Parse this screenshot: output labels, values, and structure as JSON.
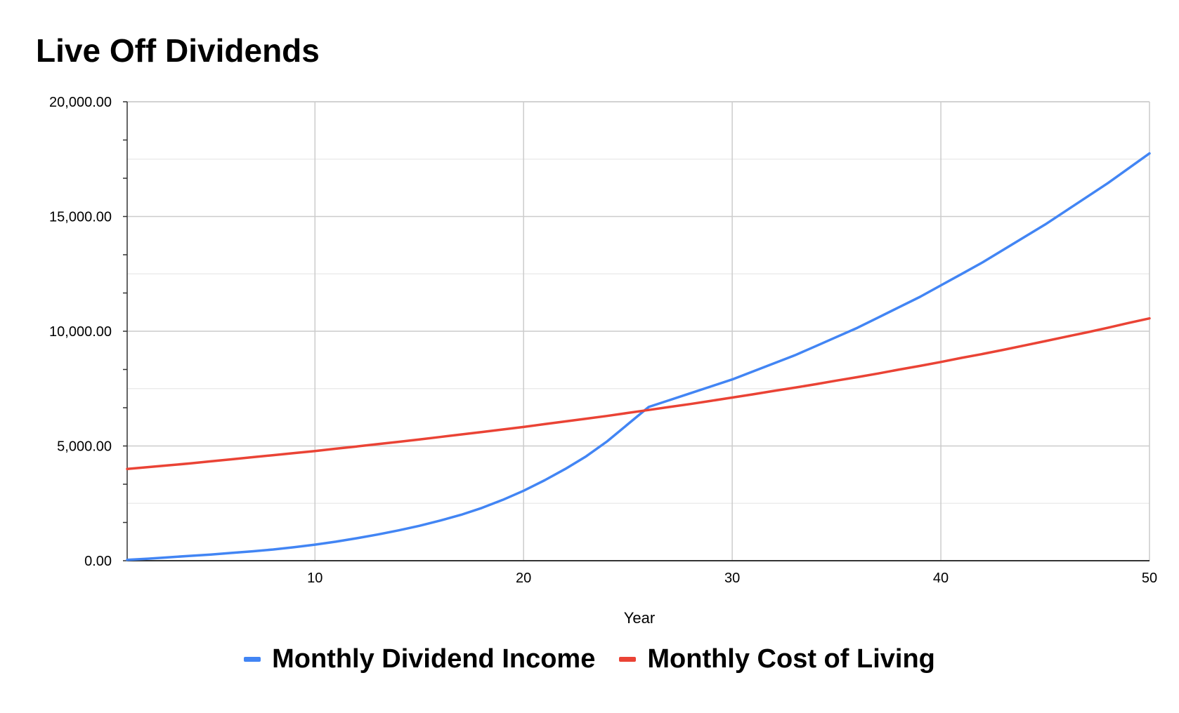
{
  "chart_data": {
    "type": "line",
    "title": "Live Off Dividends",
    "xlabel": "Year",
    "ylabel": "",
    "xlim": [
      1,
      50
    ],
    "ylim": [
      0,
      20000
    ],
    "x_ticks": [
      {
        "value": 10,
        "label": "10"
      },
      {
        "value": 20,
        "label": "20"
      },
      {
        "value": 30,
        "label": "30"
      },
      {
        "value": 40,
        "label": "40"
      },
      {
        "value": 50,
        "label": "50"
      }
    ],
    "y_ticks": [
      {
        "value": 0,
        "label": "0.00"
      },
      {
        "value": 5000,
        "label": "5,000.00"
      },
      {
        "value": 10000,
        "label": "10,000.00"
      },
      {
        "value": 15000,
        "label": "15,000.00"
      },
      {
        "value": 20000,
        "label": "20,000.00"
      }
    ],
    "grid": true,
    "legend_position": "bottom",
    "x": [
      1,
      2,
      3,
      4,
      5,
      6,
      7,
      8,
      9,
      10,
      11,
      12,
      13,
      14,
      15,
      16,
      17,
      18,
      19,
      20,
      21,
      22,
      23,
      24,
      25,
      26,
      27,
      28,
      29,
      30,
      31,
      32,
      33,
      34,
      35,
      36,
      37,
      38,
      39,
      40,
      41,
      42,
      43,
      44,
      45,
      46,
      47,
      48,
      49,
      50
    ],
    "series": [
      {
        "name": "Monthly Dividend Income",
        "color": "#4285f4",
        "values": [
          40,
          90,
          150,
          210,
          270,
          340,
          410,
          490,
          590,
          700,
          830,
          980,
          1140,
          1320,
          1520,
          1750,
          2000,
          2300,
          2650,
          3050,
          3500,
          4000,
          4550,
          5200,
          5950,
          6700,
          7000,
          7300,
          7600,
          7900,
          8250,
          8600,
          8950,
          9350,
          9750,
          10150,
          10600,
          11050,
          11500,
          12000,
          12500,
          13000,
          13550,
          14100,
          14650,
          15250,
          15850,
          16450,
          17100,
          17750
        ]
      },
      {
        "name": "Monthly Cost of Living",
        "color": "#ea4335",
        "values": [
          4000,
          4080,
          4160,
          4240,
          4330,
          4420,
          4510,
          4600,
          4690,
          4780,
          4880,
          4980,
          5080,
          5180,
          5280,
          5390,
          5500,
          5610,
          5720,
          5830,
          5950,
          6070,
          6190,
          6310,
          6440,
          6570,
          6700,
          6830,
          6970,
          7110,
          7250,
          7400,
          7540,
          7690,
          7850,
          8000,
          8160,
          8330,
          8490,
          8660,
          8840,
          9010,
          9190,
          9380,
          9570,
          9760,
          9950,
          10150,
          10360,
          10560
        ]
      }
    ]
  }
}
